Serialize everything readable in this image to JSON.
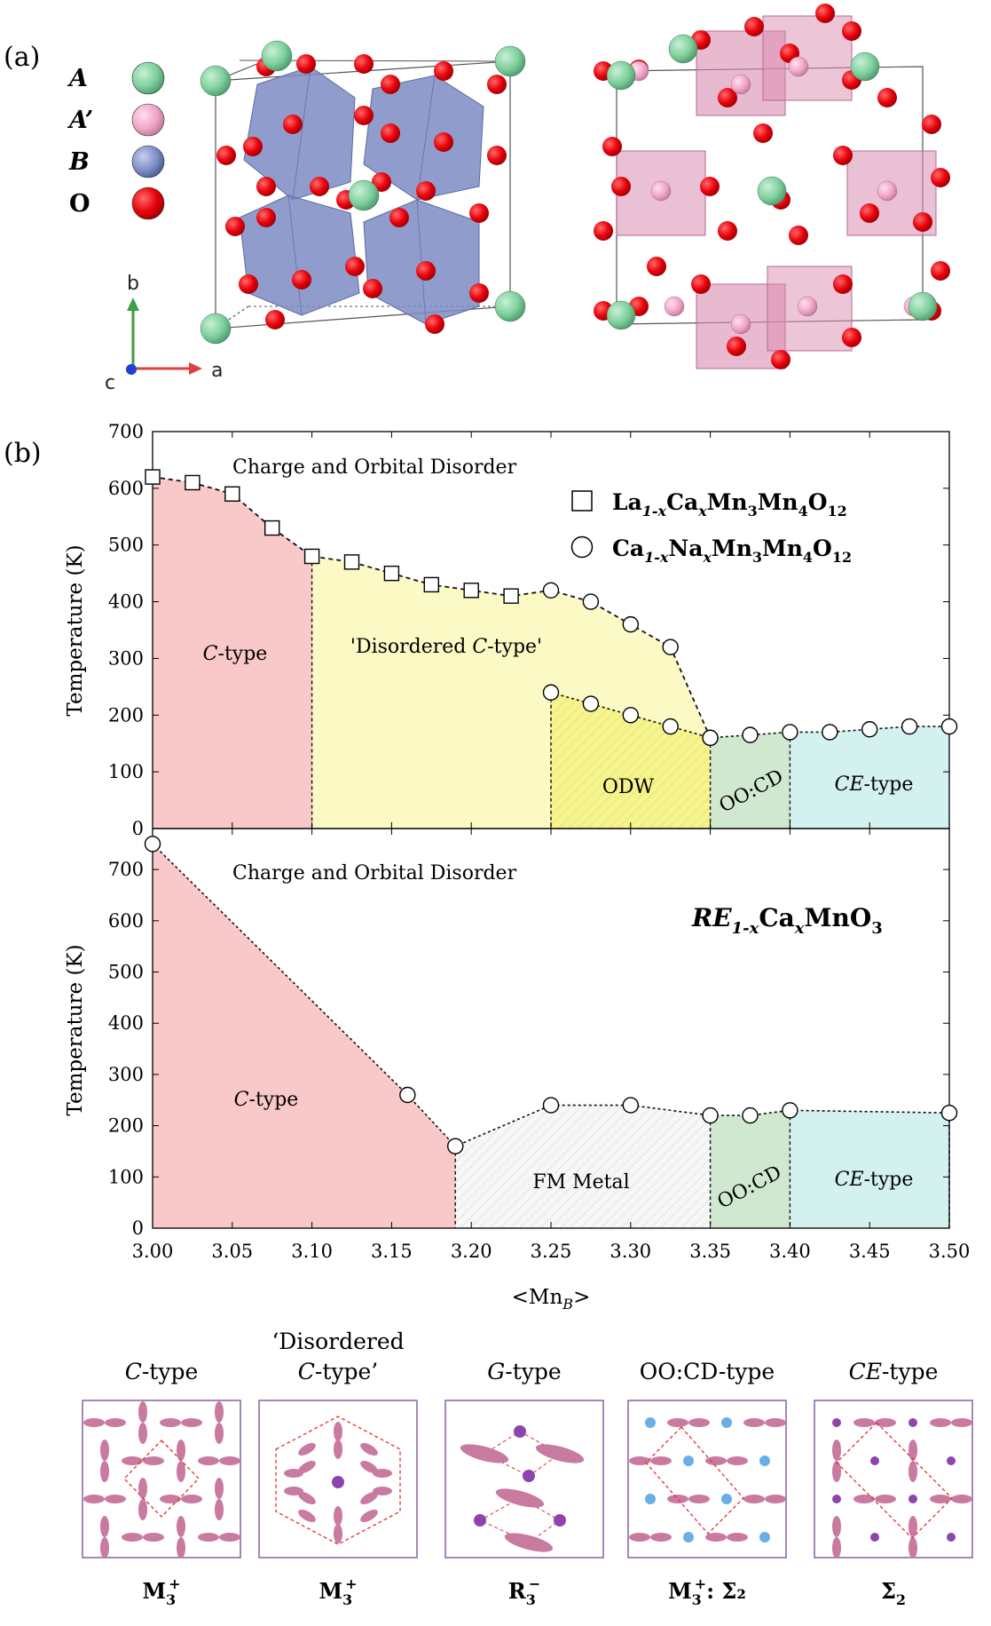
{
  "panels": {
    "a_label": "(a)",
    "b_label": "(b)"
  },
  "legend_atoms": [
    {
      "symbol": "A",
      "color": "#7fcf9d"
    },
    {
      "symbol": "A’",
      "color": "#f0a6c8"
    },
    {
      "symbol": "B",
      "color": "#7f8fc8"
    },
    {
      "symbol": "O",
      "color": "#e8000a"
    }
  ],
  "axes_triad": {
    "b": "b",
    "a": "a",
    "c": "c"
  },
  "colors": {
    "ctype": "#f9c8c8",
    "disordered": "#fbf9c4",
    "odw": "#f6f48c",
    "oocd": "#cfe8cf",
    "cetype": "#d3f1ee",
    "fm": "#f4f4f4",
    "octahedron": "#7d8bc2",
    "pink_poly": "#d98cb0",
    "purple": "#8e44ad",
    "orbital": "#c97aa0",
    "blue_dot": "#6aaee6"
  },
  "chart_data": [
    {
      "type": "line",
      "panel": "top",
      "xlim": [
        3.0,
        3.5
      ],
      "ylim": [
        0,
        700
      ],
      "xticks": [
        "3.00",
        "3.05",
        "3.10",
        "3.15",
        "3.20",
        "3.25",
        "3.30",
        "3.35",
        "3.40",
        "3.45",
        "3.50"
      ],
      "yticks": [
        "0",
        "100",
        "200",
        "300",
        "400",
        "500",
        "600",
        "700"
      ],
      "ylabel": "Temperature (K)",
      "top_text": "Charge and Orbital Disorder",
      "legend": [
        {
          "marker": "square",
          "prefix": "La",
          "sub1": "1-x",
          "mid": "Ca",
          "sub2": "x",
          "rest": "Mn",
          "sub3": "3",
          "rest2": "Mn",
          "sub4": "4",
          "rest3": "O",
          "sub5": "12"
        },
        {
          "marker": "circle",
          "prefix": "Ca",
          "sub1": "1-x",
          "mid": "Na",
          "sub2": "x",
          "rest": "Mn",
          "sub3": "3",
          "rest2": "Mn",
          "sub4": "4",
          "rest3": "O",
          "sub5": "12"
        }
      ],
      "regions": [
        {
          "name": "C-type",
          "label_em": "C",
          "label_rest": "-type",
          "color": "ctype"
        },
        {
          "name": "Disordered C-type",
          "label_pre": "'Disordered ",
          "label_em": "C",
          "label_rest": "-type'",
          "color": "disordered"
        },
        {
          "name": "ODW",
          "label_rest": "ODW",
          "color": "odw"
        },
        {
          "name": "OO:CD",
          "label_rest": "OO:CD",
          "color": "oocd"
        },
        {
          "name": "CE-type",
          "label_em": "CE",
          "label_rest": "-type",
          "color": "cetype"
        }
      ],
      "series": [
        {
          "name": "La1-xCaxMn3Mn4O12",
          "marker": "square",
          "x": [
            3.0,
            3.025,
            3.05,
            3.075,
            3.1,
            3.125,
            3.15,
            3.175,
            3.2,
            3.225
          ],
          "y": [
            620,
            610,
            590,
            530,
            480,
            470,
            450,
            430,
            420,
            410
          ]
        },
        {
          "name": "Ca1-xNaxMn3Mn4O12 (upper)",
          "marker": "circle",
          "x": [
            3.25,
            3.275,
            3.3,
            3.325,
            3.35
          ],
          "y": [
            420,
            400,
            360,
            320,
            160
          ]
        },
        {
          "name": "Ca1-xNaxMn3Mn4O12 (lower)",
          "marker": "circle",
          "x": [
            3.25,
            3.275,
            3.3,
            3.325,
            3.35,
            3.375,
            3.4,
            3.425,
            3.45,
            3.475,
            3.5
          ],
          "y": [
            240,
            220,
            200,
            180,
            160,
            165,
            170,
            170,
            175,
            180,
            180
          ]
        }
      ]
    },
    {
      "type": "line",
      "panel": "bottom",
      "xlim": [
        3.0,
        3.5
      ],
      "ylim": [
        0,
        780
      ],
      "xticks": [
        "3.00",
        "3.05",
        "3.10",
        "3.15",
        "3.20",
        "3.25",
        "3.30",
        "3.35",
        "3.40",
        "3.45",
        "3.50"
      ],
      "yticks": [
        "0",
        "100",
        "200",
        "300",
        "400",
        "500",
        "600",
        "700"
      ],
      "ylabel": "Temperature (K)",
      "xlabel_pre": "<Mn",
      "xlabel_sub": "B",
      "xlabel_post": ">",
      "top_text": "Charge and Orbital Disorder",
      "formula": {
        "re": "RE",
        "sub1": "1-x",
        "ca": "Ca",
        "sub2": "x",
        "rest": "MnO",
        "sub3": "3"
      },
      "regions": [
        {
          "name": "C-type",
          "label_em": "C",
          "label_rest": "-type",
          "color": "ctype"
        },
        {
          "name": "FM Metal",
          "label_rest": "FM Metal",
          "color": "fm"
        },
        {
          "name": "OO:CD",
          "label_rest": "OO:CD",
          "color": "oocd"
        },
        {
          "name": "CE-type",
          "label_em": "CE",
          "label_rest": "-type",
          "color": "cetype"
        }
      ],
      "series": [
        {
          "name": "RE1-xCaxMnO3",
          "marker": "circle",
          "x": [
            3.0,
            3.16,
            3.19,
            3.25,
            3.3,
            3.35,
            3.375,
            3.4,
            3.5
          ],
          "y": [
            750,
            260,
            160,
            240,
            240,
            220,
            220,
            230,
            225
          ]
        }
      ]
    }
  ],
  "orders": [
    {
      "title1": "",
      "title_em": "C",
      "title_rest": "-type",
      "irrep_main": "M",
      "irrep_sub": "3",
      "irrep_sup": "+",
      "irrep_extra": ""
    },
    {
      "title1": "‘Disordered",
      "title_em": "C",
      "title_rest": "-type’",
      "irrep_main": "M",
      "irrep_sub": "3",
      "irrep_sup": "+",
      "irrep_extra": ""
    },
    {
      "title1": "",
      "title_em": "G",
      "title_rest": "-type",
      "irrep_main": "R",
      "irrep_sub": "3",
      "irrep_sup": "−",
      "irrep_extra": ""
    },
    {
      "title1": "",
      "title_em": "",
      "title_rest": "OO:CD-type",
      "irrep_main": "M",
      "irrep_sub": "3",
      "irrep_sup": "+",
      "irrep_extra": ": Σ₂"
    },
    {
      "title1": "",
      "title_em": "CE",
      "title_rest": "-type",
      "irrep_main": "Σ",
      "irrep_sub": "2",
      "irrep_sup": "",
      "irrep_extra": ""
    }
  ]
}
